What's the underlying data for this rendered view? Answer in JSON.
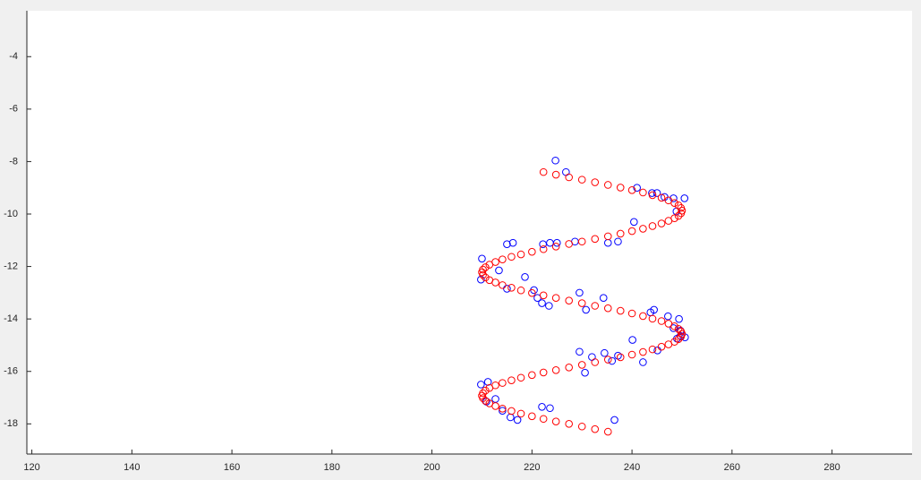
{
  "chart_data": {
    "type": "scatter",
    "xlim": [
      119,
      296
    ],
    "ylim": [
      -19.15,
      -2.25
    ],
    "xticks": [
      120,
      140,
      160,
      180,
      200,
      220,
      240,
      260,
      280
    ],
    "yticks": [
      -4,
      -6,
      -8,
      -10,
      -12,
      -14,
      -16,
      -18
    ],
    "grid": false,
    "series": [
      {
        "color": "#0000ff",
        "x": [
          224.7,
          226.8,
          241,
          244,
          245,
          246.5,
          248.3,
          250.5,
          248.9,
          240.4,
          237.2,
          235.2,
          228.6,
          225,
          223.6,
          222.2,
          216.2,
          215,
          210,
          213.4,
          218.6,
          209.8,
          215,
          220.4,
          221.1,
          222,
          223.4,
          229.5,
          234.3,
          230.8,
          244.4,
          243.7,
          247.2,
          249.4,
          248.3,
          249.7,
          249.7,
          250.6,
          249,
          240.1,
          245.1,
          229.5,
          234.5,
          232,
          237.2,
          236,
          242.2,
          230.6,
          209.8,
          211.2,
          212.7,
          210.9,
          214.1,
          222,
          223.6,
          215.7,
          217.1,
          236.5
        ],
        "values": [
          -7.96,
          -8.4,
          -9.0,
          -9.2,
          -9.2,
          -9.35,
          -9.4,
          -9.4,
          -9.9,
          -10.3,
          -11.05,
          -11.1,
          -11.05,
          -11.1,
          -11.1,
          -11.15,
          -11.1,
          -11.15,
          -11.7,
          -12.15,
          -12.4,
          -12.5,
          -12.85,
          -12.9,
          -13.2,
          -13.4,
          -13.5,
          -13.0,
          -13.2,
          -13.65,
          -13.65,
          -13.75,
          -13.9,
          -14.0,
          -14.35,
          -14.45,
          -14.65,
          -14.7,
          -14.75,
          -14.8,
          -15.2,
          -15.25,
          -15.3,
          -15.45,
          -15.4,
          -15.6,
          -15.65,
          -16.05,
          -16.5,
          -16.4,
          -17.05,
          -17.15,
          -17.5,
          -17.35,
          -17.4,
          -17.75,
          -17.85,
          -17.85
        ]
      },
      {
        "color": "#ff0000",
        "x": [
          222.3,
          224.8,
          227.4,
          230,
          232.6,
          235.2,
          237.7,
          240,
          242.2,
          244.1,
          245.9,
          247.3,
          248.5,
          249.3,
          249.8,
          250,
          249.8,
          249.3,
          248.5,
          247.3,
          245.9,
          244.1,
          242.2,
          240,
          237.7,
          235.2,
          232.6,
          230,
          227.4,
          224.8,
          222.3,
          220,
          217.8,
          215.9,
          214.1,
          212.7,
          211.5,
          210.7,
          210.2,
          210,
          210.2,
          210.7,
          211.5,
          212.7,
          214.1,
          215.9,
          217.8,
          220,
          222.3,
          224.8,
          227.4,
          230,
          232.6,
          235.2,
          237.7,
          240,
          242.2,
          244.1,
          245.9,
          247.3,
          248.5,
          249.3,
          249.8,
          250,
          249.8,
          249.3,
          248.5,
          247.3,
          245.9,
          244.1,
          242.2,
          240,
          237.7,
          235.2,
          232.6,
          230,
          227.4,
          224.8,
          222.3,
          220,
          217.8,
          215.9,
          214.1,
          212.7,
          211.5,
          210.7,
          210.2,
          210,
          210.2,
          210.7,
          211.5,
          212.7,
          214.1,
          215.9,
          217.8,
          220,
          222.3,
          224.8,
          227.4,
          230,
          232.6,
          235.2
        ],
        "values": [
          -8.4,
          -8.5,
          -8.6,
          -8.69,
          -8.79,
          -8.89,
          -8.99,
          -9.09,
          -9.18,
          -9.28,
          -9.38,
          -9.48,
          -9.58,
          -9.67,
          -9.77,
          -9.87,
          -9.97,
          -10.07,
          -10.16,
          -10.26,
          -10.36,
          -10.46,
          -10.56,
          -10.65,
          -10.75,
          -10.85,
          -10.95,
          -11.05,
          -11.14,
          -11.24,
          -11.34,
          -11.44,
          -11.54,
          -11.63,
          -11.73,
          -11.83,
          -11.93,
          -12.03,
          -12.12,
          -12.22,
          -12.32,
          -12.42,
          -12.52,
          -12.61,
          -12.71,
          -12.81,
          -12.91,
          -13.01,
          -13.1,
          -13.2,
          -13.3,
          -13.4,
          -13.5,
          -13.59,
          -13.69,
          -13.79,
          -13.89,
          -13.99,
          -14.08,
          -14.18,
          -14.28,
          -14.38,
          -14.48,
          -14.57,
          -14.67,
          -14.77,
          -14.87,
          -14.97,
          -15.06,
          -15.16,
          -15.26,
          -15.36,
          -15.46,
          -15.55,
          -15.65,
          -15.75,
          -15.85,
          -15.95,
          -16.04,
          -16.14,
          -16.24,
          -16.34,
          -16.44,
          -16.53,
          -16.63,
          -16.73,
          -16.83,
          -16.93,
          -17.02,
          -17.12,
          -17.22,
          -17.32,
          -17.42,
          -17.51,
          -17.61,
          -17.71,
          -17.81,
          -17.91,
          -18.0,
          -18.1,
          -18.2,
          -18.3
        ]
      }
    ]
  }
}
